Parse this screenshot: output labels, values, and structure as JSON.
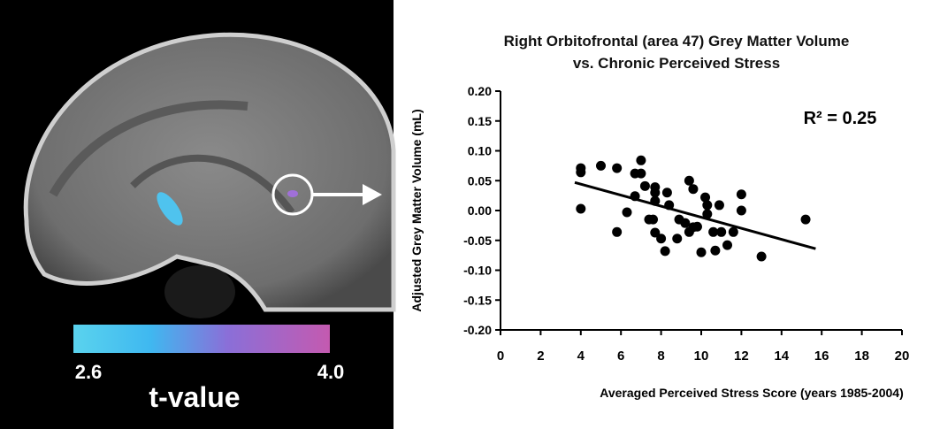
{
  "chart_data": {
    "type": "scatter",
    "title": "Right Orbitofrontal (area 47) Grey Matter Volume vs. Chronic Perceived Stress",
    "x_label": "Averaged Perceived Stress Score (years 1985-2004)",
    "y_label": "Adjusted Grey Matter Volume (mL)",
    "annotation": "R² = 0.25",
    "xlim": [
      0,
      20
    ],
    "xticks": [
      0,
      2,
      4,
      6,
      8,
      10,
      12,
      14,
      16,
      18,
      20
    ],
    "ylim": [
      -0.2,
      0.2
    ],
    "yticks": [
      {
        "value": 0.2,
        "label": "0.20"
      },
      0.15,
      {
        "value": 0.1,
        "label": "0.10"
      },
      0.05,
      {
        "value": 0,
        "label": "0.00"
      },
      -0.05,
      {
        "value": -0.1,
        "label": "-0.10"
      },
      -0.15,
      {
        "value": -0.2,
        "label": "-0.20"
      }
    ],
    "series": [
      {
        "color": "#000000",
        "x": [
          4.0,
          4.0,
          4.0,
          5.0,
          5.8,
          5.8,
          6.3,
          6.7,
          7.0,
          7.0,
          6.7,
          7.2,
          7.4,
          7.6,
          7.7,
          7.7,
          7.7,
          7.7,
          8.0,
          8.2,
          8.4,
          8.3,
          8.8,
          8.9,
          9.2,
          9.4,
          9.6,
          9.4,
          9.6,
          9.8,
          10.0,
          10.2,
          10.3,
          10.3,
          10.6,
          10.7,
          10.9,
          11.0,
          11.3,
          11.6,
          12.0,
          12.0,
          13.0,
          15.2
        ],
        "y": [
          0.071,
          0.064,
          0.003,
          0.075,
          0.071,
          -0.036,
          -0.003,
          0.062,
          0.084,
          0.062,
          0.024,
          0.041,
          -0.015,
          -0.015,
          0.039,
          0.03,
          0.016,
          -0.037,
          -0.047,
          -0.068,
          0.009,
          0.03,
          -0.047,
          -0.015,
          -0.021,
          0.05,
          0.036,
          -0.036,
          -0.028,
          -0.027,
          -0.07,
          0.022,
          0.009,
          -0.006,
          -0.036,
          -0.067,
          0.009,
          -0.036,
          -0.058,
          -0.036,
          0.027,
          0.0,
          -0.077,
          -0.015
        ]
      }
    ],
    "trendline": {
      "color": "#000000",
      "x": [
        3.7,
        15.7
      ],
      "y": [
        0.047,
        -0.064
      ]
    }
  },
  "brain_panel": {
    "colorbar": {
      "ticks": [
        2.6,
        {
          "value": 4,
          "label": "4.0"
        }
      ],
      "label": "t-value"
    }
  }
}
